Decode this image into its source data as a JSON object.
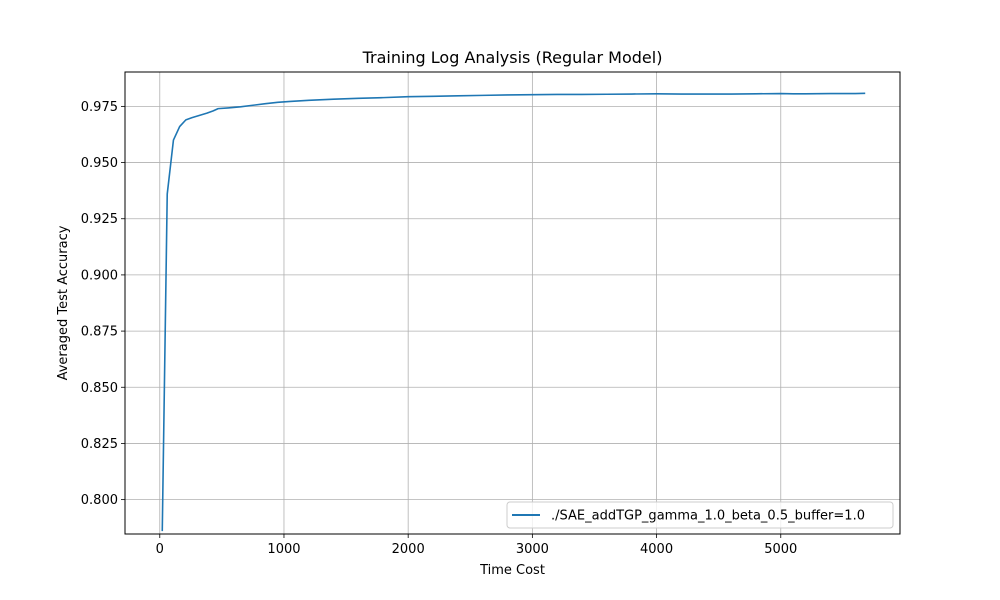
{
  "chart_data": {
    "type": "line",
    "title": "Training Log Analysis (Regular Model)",
    "xlabel": "Time Cost",
    "ylabel": "Averaged Test Accuracy",
    "xlim": [
      -280,
      5960
    ],
    "ylim": [
      0.7847,
      0.9903
    ],
    "xticks": [
      0,
      1000,
      2000,
      3000,
      4000,
      5000
    ],
    "yticks": [
      0.8,
      0.825,
      0.85,
      0.875,
      0.9,
      0.925,
      0.95,
      0.975
    ],
    "grid": true,
    "legend_position": "bottom-right",
    "series": [
      {
        "name": "./SAE_addTGP_gamma_1.0_beta_0.5_buffer=1.0",
        "color": "#1f77b4",
        "x": [
          20,
          60,
          110,
          160,
          210,
          260,
          320,
          380,
          430,
          470,
          550,
          650,
          750,
          850,
          950,
          1050,
          1200,
          1400,
          1600,
          1800,
          2000,
          2200,
          2400,
          2600,
          2800,
          3000,
          3200,
          3400,
          3600,
          3800,
          4000,
          4200,
          4400,
          4600,
          4800,
          5000,
          5100,
          5200,
          5400,
          5600,
          5680
        ],
        "y": [
          0.786,
          0.936,
          0.96,
          0.966,
          0.969,
          0.97,
          0.971,
          0.972,
          0.973,
          0.974,
          0.9743,
          0.9748,
          0.9755,
          0.9762,
          0.9768,
          0.9772,
          0.9777,
          0.9782,
          0.9786,
          0.9789,
          0.9793,
          0.9795,
          0.9797,
          0.9799,
          0.9801,
          0.9802,
          0.9803,
          0.9803,
          0.9804,
          0.9805,
          0.9806,
          0.9805,
          0.9805,
          0.9805,
          0.9806,
          0.9807,
          0.9806,
          0.9806,
          0.9807,
          0.9807,
          0.9808
        ]
      }
    ]
  }
}
